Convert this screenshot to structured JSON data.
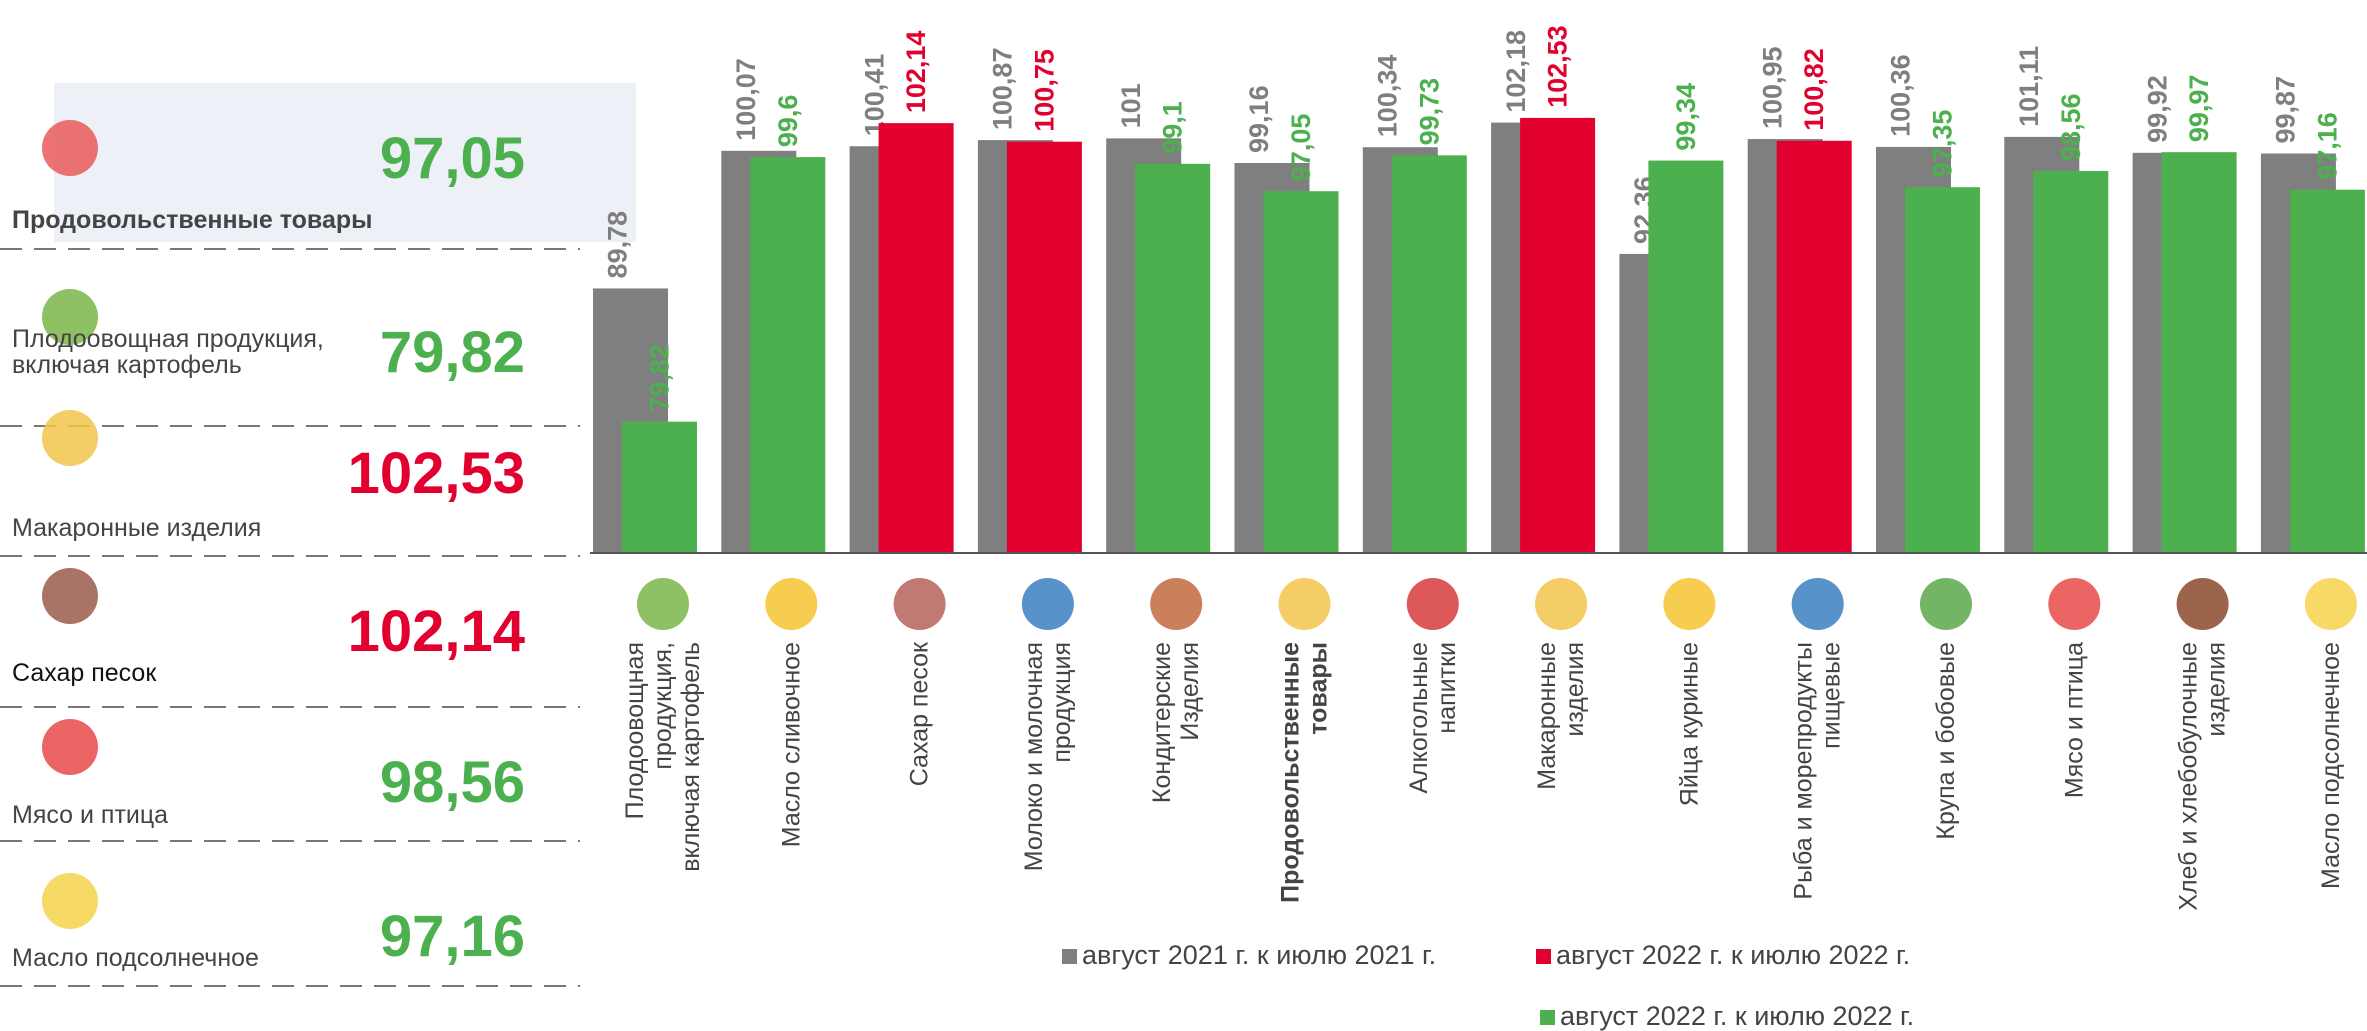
{
  "chart_data": {
    "type": "bar",
    "categories": [
      "Плодоовощная\nпродукция,\nвключая картофель",
      "Масло сливочное",
      "Сахар песок",
      "Молоко и молочная\nпродукция",
      "Кондитерские\nИзделия",
      "Продовольственные\nтовары",
      "Алкогольные\nнапитки",
      "Макаронные\nизделия",
      "Яйца куриные",
      "Рыба и морепродукты\nпищевые",
      "Крупа и бобовые",
      "Мясо и птица",
      "Хлеб и хлебобулочные\nизделия",
      "Масло подсолнечное"
    ],
    "bold_category": 5,
    "series": [
      {
        "color": "#7f7f7f",
        "values": [
          89.78,
          100.07,
          100.41,
          100.87,
          101,
          99.16,
          100.34,
          102.18,
          92.36,
          100.95,
          100.36,
          101.11,
          99.92,
          99.87
        ],
        "value_labels": [
          "89,78",
          "100,07",
          "100,41",
          "100,87",
          "101",
          "99,16",
          "100,34",
          "102,18",
          "92,36",
          "100,95",
          "100,36",
          "101,11",
          "99,92",
          "99,87"
        ]
      },
      {
        "colors": [
          "#4cb04f",
          "#4cb04f",
          "#e2002e",
          "#e2002e",
          "#4cb04f",
          "#4cb04f",
          "#4cb04f",
          "#e2002e",
          "#4cb04f",
          "#e2002e",
          "#4cb04f",
          "#4cb04f",
          "#4cb04f",
          "#4cb04f"
        ],
        "values": [
          79.82,
          99.6,
          102.14,
          100.75,
          99.1,
          97.05,
          99.73,
          102.53,
          99.34,
          100.82,
          97.35,
          98.56,
          99.97,
          97.16
        ],
        "value_labels": [
          "79,82",
          "99,6",
          "102,14",
          "100,75",
          "99,1",
          "97,05",
          "99,73",
          "102,53",
          "99,34",
          "100,82",
          "97,35",
          "98,56",
          "99,97",
          "97,16"
        ]
      }
    ],
    "legend": [
      {
        "name": "август 2021 г. к июлю 2021 г.",
        "color": "#7f7f7f"
      },
      {
        "name": "август 2022 г. к июлю 2022 г.",
        "color": "#e2002e"
      },
      {
        "name": "август 2022 г. к июлю 2022 г.",
        "color": "#4cb04f"
      }
    ],
    "ylim": [
      70,
      110
    ]
  },
  "left_panel": {
    "items": [
      {
        "label": "Продовольственные товары",
        "value": "97,05",
        "color": "#4cb04f"
      },
      {
        "label": "Плодоовощная продукция,\nвключая картофель",
        "value": "79,82",
        "color": "#4cb04f"
      },
      {
        "label": "Макаронные изделия",
        "value": "102,53",
        "color": "#e2002e"
      },
      {
        "label": "Сахар песок",
        "value": "102,14",
        "color": "#e2002e"
      },
      {
        "label": "Мясо и птица",
        "value": "98,56",
        "color": "#4cb04f"
      },
      {
        "label": "Масло подсолнечное",
        "value": "97,16",
        "color": "#4cb04f"
      }
    ]
  }
}
